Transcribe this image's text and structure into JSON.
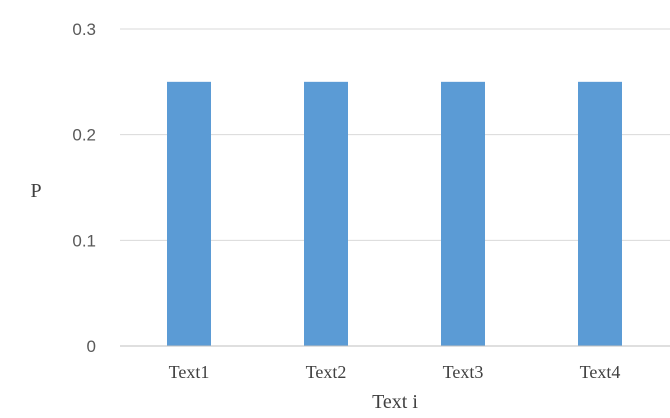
{
  "chart_data": {
    "type": "bar",
    "categories": [
      "Text1",
      "Text2",
      "Text3",
      "Text4"
    ],
    "series": [
      {
        "values": [
          0.25,
          0.25,
          0.25,
          0.25
        ],
        "color": "#5b9bd5"
      }
    ],
    "xlabel": "Text i",
    "ylabel": "P",
    "ylim": [
      0,
      0.3
    ],
    "yticks": [
      "0",
      "0.1",
      "0.2",
      "0.3"
    ],
    "grid": true,
    "legend": "none"
  }
}
